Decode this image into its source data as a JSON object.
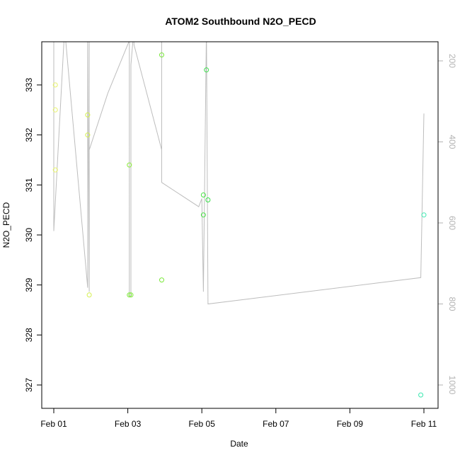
{
  "chart_data": {
    "type": "scatter",
    "title": "ATOM2 Southbound N2O_PECD",
    "xlabel": "Date",
    "ylabel": "N2O_PECD",
    "x_ticks": [
      "Feb 01",
      "Feb 03",
      "Feb 05",
      "Feb 07",
      "Feb 09",
      "Feb 11"
    ],
    "y_ticks": [
      327,
      328,
      329,
      330,
      331,
      332,
      333
    ],
    "ylim": [
      326.6,
      333.9
    ],
    "y2_ticks": [
      200,
      400,
      600,
      800,
      1000
    ],
    "y2lim": [
      1060,
      150
    ],
    "points": [
      {
        "date": "2016-02-01T01:00",
        "value": 333.0,
        "color": "#e6f26b"
      },
      {
        "date": "2016-02-01T01:00",
        "value": 332.5,
        "color": "#e6f26b"
      },
      {
        "date": "2016-02-01T01:00",
        "value": 331.3,
        "color": "#e6f26b"
      },
      {
        "date": "2016-02-01T22:00",
        "value": 332.4,
        "color": "#d4f04a"
      },
      {
        "date": "2016-02-01T22:00",
        "value": 332.0,
        "color": "#d4f04a"
      },
      {
        "date": "2016-02-01T23:00",
        "value": 328.8,
        "color": "#d4f04a"
      },
      {
        "date": "2016-02-03T01:00",
        "value": 331.4,
        "color": "#8cec3a"
      },
      {
        "date": "2016-02-03T01:00",
        "value": 328.8,
        "color": "#7ee83a"
      },
      {
        "date": "2016-02-03T02:00",
        "value": 328.8,
        "color": "#7ee83a"
      },
      {
        "date": "2016-02-03T22:00",
        "value": 333.6,
        "color": "#7ae83a"
      },
      {
        "date": "2016-02-03T22:00",
        "value": 329.1,
        "color": "#7ae83a"
      },
      {
        "date": "2016-02-05T01:00",
        "value": 330.8,
        "color": "#48e444"
      },
      {
        "date": "2016-02-05T01:00",
        "value": 330.4,
        "color": "#48e444"
      },
      {
        "date": "2016-02-05T03:00",
        "value": 333.3,
        "color": "#3ae24a"
      },
      {
        "date": "2016-02-05T04:00",
        "value": 330.7,
        "color": "#3ae24a"
      },
      {
        "date": "2016-02-10T22:00",
        "value": 326.8,
        "color": "#3ce8b0"
      },
      {
        "date": "2016-02-11T00:00",
        "value": 330.4,
        "color": "#3ce8b0"
      }
    ],
    "altitude_profile": [
      {
        "date": "2016-02-01T00:00",
        "pressure": 120
      },
      {
        "date": "2016-02-01T00:00",
        "pressure": 620
      },
      {
        "date": "2016-02-01T07:00",
        "pressure": 120
      },
      {
        "date": "2016-02-01T22:00",
        "pressure": 760
      },
      {
        "date": "2016-02-01T22:00",
        "pressure": 120
      },
      {
        "date": "2016-02-01T23:00",
        "pressure": 770
      },
      {
        "date": "2016-02-01T23:00",
        "pressure": 120
      },
      {
        "date": "2016-02-01T23:00",
        "pressure": 420
      },
      {
        "date": "2016-02-02T11:00",
        "pressure": 280
      },
      {
        "date": "2016-02-03T01:00",
        "pressure": 150
      },
      {
        "date": "2016-02-03T01:00",
        "pressure": 780
      },
      {
        "date": "2016-02-03T02:00",
        "pressure": 780
      },
      {
        "date": "2016-02-03T02:00",
        "pressure": 210
      },
      {
        "date": "2016-02-03T04:00",
        "pressure": 120
      },
      {
        "date": "2016-02-03T04:00",
        "pressure": 160
      },
      {
        "date": "2016-02-03T22:00",
        "pressure": 420
      },
      {
        "date": "2016-02-03T22:00",
        "pressure": 120
      },
      {
        "date": "2016-02-03T22:00",
        "pressure": 500
      },
      {
        "date": "2016-02-04T22:00",
        "pressure": 560
      },
      {
        "date": "2016-02-05T00:00",
        "pressure": 540
      },
      {
        "date": "2016-02-05T01:00",
        "pressure": 770
      },
      {
        "date": "2016-02-05T03:00",
        "pressure": 120
      },
      {
        "date": "2016-02-05T04:00",
        "pressure": 800
      },
      {
        "date": "2016-02-10T22:00",
        "pressure": 735
      },
      {
        "date": "2016-02-11T00:00",
        "pressure": 330
      }
    ]
  }
}
